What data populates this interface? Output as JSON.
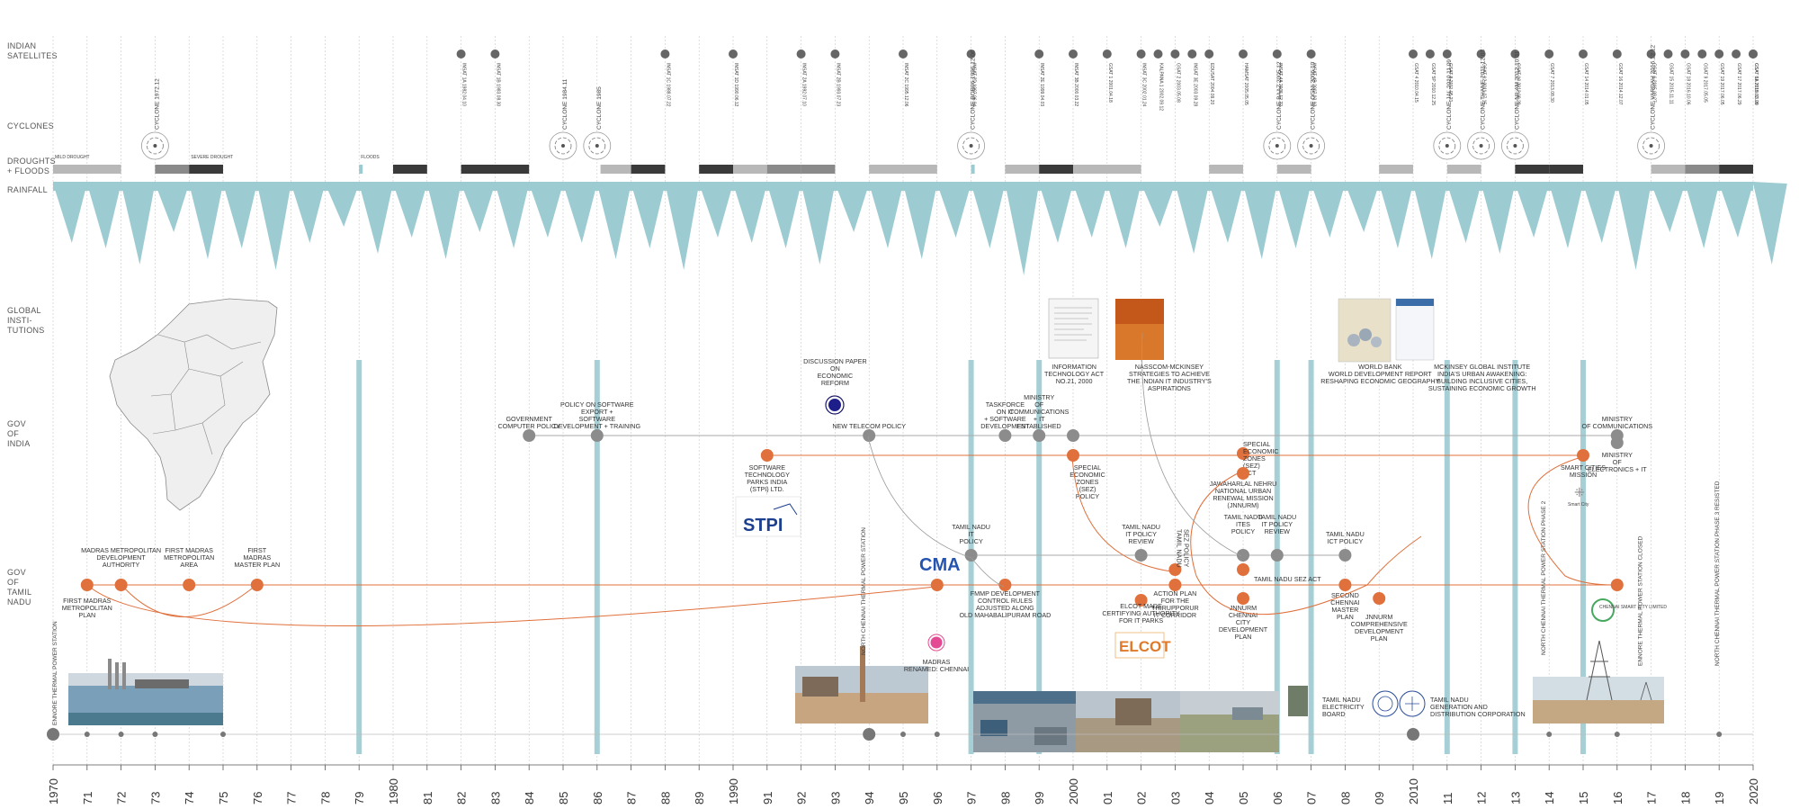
{
  "row_labels": {
    "satellites": [
      "INDIAN",
      "SATELLITES"
    ],
    "cyclones": [
      "CYCLONES"
    ],
    "droughts": [
      "DROUGHTS",
      "+ FLOODS"
    ],
    "rainfall": [
      "RAINFALL"
    ],
    "global": [
      "GLOBAL",
      "INSTI-",
      "TUTIONS"
    ],
    "goi": [
      "GOV",
      "OF",
      "INDIA"
    ],
    "gotn": [
      "GOV",
      "OF",
      "TAMIL",
      "NADU"
    ]
  },
  "years": [
    "1970",
    "71",
    "72",
    "73",
    "74",
    "75",
    "76",
    "77",
    "78",
    "79",
    "1980",
    "81",
    "82",
    "83",
    "84",
    "85",
    "86",
    "87",
    "88",
    "89",
    "1990",
    "91",
    "92",
    "93",
    "94",
    "95",
    "96",
    "97",
    "98",
    "99",
    "2000",
    "01",
    "02",
    "03",
    "04",
    "05",
    "06",
    "07",
    "08",
    "09",
    "2010",
    "11",
    "12",
    "13",
    "14",
    "15",
    "16",
    "17",
    "18",
    "19",
    "2020"
  ],
  "year_range": [
    1970,
    2020
  ],
  "colors": {
    "accent": "#e0703c",
    "teal": "#9ccbd2",
    "grey": "#888888",
    "dark": "#3a3a3a",
    "light": "#bdbdbd"
  },
  "satellites": [
    {
      "year": 82.0,
      "label": "INSAT 1A 1982.04.10"
    },
    {
      "year": 83.0,
      "label": "INSAT 1B 1983.08.30"
    },
    {
      "year": 88.0,
      "label": "INSAT 1C 1988.07.22"
    },
    {
      "year": 90.0,
      "label": "INSAT 1D 1990.06.12"
    },
    {
      "year": 92.0,
      "label": "INSAT 2A 1992.07.10"
    },
    {
      "year": 93.0,
      "label": "INSAT 2B 1993.07.23"
    },
    {
      "year": 95.0,
      "label": "INSAT 2C 1995.12.06"
    },
    {
      "year": 97.0,
      "label": "INSAT 2D 1997.06.04"
    },
    {
      "year": 99.0,
      "label": "INSAT 2E 1999.04.03"
    },
    {
      "year": 100.0,
      "label": "INSAT 3B 2000.03.22"
    },
    {
      "year": 101.0,
      "label": "GSAT 1 2001.04.18"
    },
    {
      "year": 102.0,
      "label": "INSAT 3C 2002.01.24"
    },
    {
      "year": 102.5,
      "label": "KALPANA 1 2002.09.12"
    },
    {
      "year": 103.0,
      "label": "GSAT 2 2003.05.08"
    },
    {
      "year": 103.5,
      "label": "INSAT 3E 2003.09.28"
    },
    {
      "year": 104.0,
      "label": "EDUSAT 2004.09.20"
    },
    {
      "year": 105.0,
      "label": "HAMSAT 2005.05.05"
    },
    {
      "year": 106.0,
      "label": "INSAT 4A 2005.12.22"
    },
    {
      "year": 107.0,
      "label": "INSAT 4B 2007.03.12"
    },
    {
      "year": 110.0,
      "label": "GSAT 4 2010.04.15"
    },
    {
      "year": 110.5,
      "label": "GSAT 5P 2010.12.25"
    },
    {
      "year": 111.0,
      "label": "GSAT 8 2011.05.21"
    },
    {
      "year": 112.0,
      "label": "GSAT 12 2011.07.15"
    },
    {
      "year": 113.0,
      "label": "GSAT 10 2012.09.29"
    },
    {
      "year": 114.0,
      "label": "GSAT 7 2013.08.30"
    },
    {
      "year": 115.0,
      "label": "GSAT 14 2014.01.05"
    },
    {
      "year": 116.0,
      "label": "GSAT 16 2014.12.07"
    },
    {
      "year": 117.0,
      "label": "GSAT 6 2015.08.27"
    },
    {
      "year": 117.5,
      "label": "GSAT 15 2015.11.11"
    },
    {
      "year": 118.0,
      "label": "GSAT 18 2016.10.06"
    },
    {
      "year": 118.5,
      "label": "GSAT 9 2017.05.05"
    },
    {
      "year": 119.0,
      "label": "GSAT 19 2017.06.05"
    },
    {
      "year": 119.5,
      "label": "GSAT 17 2017.06.29"
    },
    {
      "year": 120.0,
      "label": "GSAT 6A 2018.03.29"
    },
    {
      "year": 120.0,
      "label": "GSAT 31 2019.02.06"
    }
  ],
  "cyclones": [
    {
      "year": 73.0,
      "label": "CYCLONE 1972.12"
    },
    {
      "year": 85.0,
      "label": "CYCLONE 1984.11"
    },
    {
      "year": 86.0,
      "label": "CYCLONE 1985"
    },
    {
      "year": 97.0,
      "label": "CYCLONE BOB06 1996.12.06"
    },
    {
      "year": 106.0,
      "label": "CYCLONE BAAZ 2005.12"
    },
    {
      "year": 107.0,
      "label": "CYCLONE OGNI 2006.10"
    },
    {
      "year": 111.0,
      "label": "CYCLONE JAL 2010.11.09"
    },
    {
      "year": 112.0,
      "label": "CYCLONE THANE 2011.12.03"
    },
    {
      "year": 113.0,
      "label": "CYCLONE NILAM 2012.10.31"
    },
    {
      "year": 117.0,
      "label": "CYCLONE VARDAH 2016.12.12"
    }
  ],
  "droughts": [
    {
      "start": 70.0,
      "end": 72.0,
      "level": "light"
    },
    {
      "start": 73.0,
      "end": 74.0,
      "level": "mid"
    },
    {
      "start": 74.0,
      "end": 75.0,
      "level": "dark"
    },
    {
      "start": 79.0,
      "end": 79.1,
      "level": "teal"
    },
    {
      "start": 80.0,
      "end": 81.0,
      "level": "dark"
    },
    {
      "start": 82.0,
      "end": 84.0,
      "level": "dark"
    },
    {
      "start": 86.1,
      "end": 87.0,
      "level": "light"
    },
    {
      "start": 87.0,
      "end": 88.0,
      "level": "dark"
    },
    {
      "start": 89.0,
      "end": 90.0,
      "level": "dark"
    },
    {
      "start": 90.0,
      "end": 91.0,
      "level": "light"
    },
    {
      "start": 91.0,
      "end": 92.0,
      "level": "mid"
    },
    {
      "start": 92.0,
      "end": 93.0,
      "level": "mid"
    },
    {
      "start": 94.0,
      "end": 96.0,
      "level": "light"
    },
    {
      "start": 97.0,
      "end": 97.1,
      "level": "teal"
    },
    {
      "start": 98.0,
      "end": 99.0,
      "level": "light"
    },
    {
      "start": 99.0,
      "end": 100.0,
      "level": "dark"
    },
    {
      "start": 100.0,
      "end": 102.0,
      "level": "light"
    },
    {
      "start": 104.0,
      "end": 105.0,
      "level": "light"
    },
    {
      "start": 106.0,
      "end": 107.0,
      "level": "light"
    },
    {
      "start": 109.0,
      "end": 110.0,
      "level": "light"
    },
    {
      "start": 111.0,
      "end": 112.0,
      "level": "light"
    },
    {
      "start": 113.0,
      "end": 114.0,
      "level": "dark"
    },
    {
      "start": 114.0,
      "end": 115.0,
      "level": "dark"
    },
    {
      "start": 117.0,
      "end": 118.0,
      "level": "light"
    },
    {
      "start": 118.0,
      "end": 119.0,
      "level": "mid"
    },
    {
      "start": 119.0,
      "end": 120.0,
      "level": "dark"
    }
  ],
  "drought_labels": [
    {
      "year": 70.0,
      "text": "MILD DROUGHT"
    },
    {
      "year": 74.0,
      "text": "SEVERE DROUGHT"
    },
    {
      "year": 79.0,
      "text": "FLOODS"
    }
  ],
  "rainfall": [
    0.55,
    0.6,
    0.75,
    0.45,
    0.7,
    0.6,
    0.8,
    0.55,
    0.4,
    0.65,
    0.5,
    0.7,
    0.45,
    0.6,
    0.5,
    0.55,
    0.7,
    0.6,
    0.8,
    0.5,
    0.55,
    0.6,
    0.75,
    0.45,
    0.6,
    0.7,
    0.5,
    0.6,
    0.85,
    0.55,
    0.5,
    0.6,
    0.4,
    0.65,
    0.55,
    0.7,
    0.6,
    0.5,
    0.45,
    0.6,
    0.7,
    0.55,
    0.65,
    0.5,
    0.6,
    0.55,
    0.8,
    0.45,
    0.6,
    0.5,
    0.75
  ],
  "highlight_years": [
    79,
    86,
    97,
    99,
    106,
    107,
    111,
    113,
    115
  ],
  "global_items": [
    {
      "year": 99.5,
      "lines": [
        "INFORMATION",
        "TECHNOLOGY ACT",
        "NO.21, 2000"
      ]
    },
    {
      "year": 102.3,
      "lines": [
        "NASSCOM-MCKINSEY",
        "STRATEGIES TO ACHIEVE",
        "THE INDIAN IT INDUSTRY'S",
        "ASPIRATIONS"
      ]
    },
    {
      "year": 108.5,
      "lines": [
        "WORLD BANK",
        "WORLD DEVELOPMENT REPORT",
        "RESHAPING ECONOMIC GEOGRAPHY"
      ]
    },
    {
      "year": 111.5,
      "lines": [
        "MCKINSEY GLOBAL INSTITUTE",
        "INDIA'S URBAN AWAKENING:",
        "BUILDING INCLUSIVE CITIES,",
        "SUSTAINING ECONOMIC GROWTH"
      ]
    }
  ],
  "goi_events": [
    {
      "year": 84.0,
      "lines": [
        "GOVERNMENT",
        "COMPUTER POLICY"
      ],
      "color": "grey"
    },
    {
      "year": 86.0,
      "lines": [
        "POLICY ON SOFTWARE",
        "EXPORT +",
        "SOFTWARE",
        "DEVELOPMENT + TRAINING"
      ],
      "color": "grey"
    },
    {
      "year": 94.0,
      "lines": [
        "NEW TELECOM POLICY"
      ],
      "color": "grey"
    },
    {
      "year": 93.0,
      "lines": [
        "DISCUSSION PAPER",
        "ON",
        "ECONOMIC",
        "REFORM"
      ],
      "color": "none"
    },
    {
      "year": 98.0,
      "lines": [
        "TASKFORCE",
        "ON IT",
        "+ SOFTWARE",
        "DEVELOPMENT"
      ],
      "color": "grey"
    },
    {
      "year": 99.0,
      "lines": [
        "MINISTRY",
        "OF",
        "COMMUNICATIONS",
        "+ IT",
        "ESTABLISHED"
      ],
      "color": "grey"
    },
    {
      "year": 100.0,
      "lines": [],
      "color": "grey"
    },
    {
      "year": 91.0,
      "lines": [
        "SOFTWARE",
        "TECHNOLOGY",
        "PARKS INDIA",
        "(STPI) LTD."
      ],
      "color": "orange"
    },
    {
      "year": 100.0,
      "lines": [
        "SPECIAL",
        "ECONOMIC",
        "ZONES",
        "(SEZ)",
        "POLICY"
      ],
      "color": "orange",
      "lower": true
    },
    {
      "year": 105.0,
      "lines": [
        "SPECIAL",
        "ECONOMIC",
        "ZONES",
        "(SEZ)",
        "ACT"
      ],
      "color": "orange"
    },
    {
      "year": 115.0,
      "lines": [
        "SMART CITIES",
        "MISSION"
      ],
      "color": "orange"
    },
    {
      "year": 116.0,
      "lines": [
        "MINISTRY",
        "OF COMMUNICATIONS"
      ],
      "color": "grey"
    },
    {
      "year": 116.0,
      "lines": [
        "MINISTRY",
        "OF",
        "ELECTRONICS + IT"
      ],
      "color": "grey",
      "lower": true
    }
  ],
  "gotn_events": [
    {
      "year": 71.0,
      "lines": [
        "FIRST MADRAS",
        "METROPOLITAN",
        "PLAN"
      ],
      "below": true
    },
    {
      "year": 72.0,
      "lines": [
        "MADRAS METROPOLITAN",
        "DEVELOPMENT",
        "AUTHORITY"
      ]
    },
    {
      "year": 74.0,
      "lines": [
        "FIRST MADRAS",
        "METROPOLITAN",
        "AREA"
      ]
    },
    {
      "year": 76.0,
      "lines": [
        "FIRST",
        "MADRAS",
        "MASTER PLAN"
      ]
    },
    {
      "year": 96.0,
      "lines": []
    },
    {
      "year": 97.0,
      "lines": [
        "TAMIL NADU",
        "IT",
        "POLICY"
      ],
      "grey": true
    },
    {
      "year": 98.0,
      "lines": [
        "FMMP DEVELOPMENT",
        "CONTROL RULES",
        "ADJUSTED ALONG",
        "OLD MAHABALIPURAM ROAD"
      ],
      "below": true
    },
    {
      "year": 102.0,
      "lines": [
        "TAMIL NADU",
        "IT POLICY",
        "REVIEW"
      ],
      "grey": true
    },
    {
      "year": 102.0,
      "lines": [
        "ELCOT MADE",
        "CERTIFYING AUTHORITY",
        "FOR IT PARKS"
      ],
      "below": true
    },
    {
      "year": 103.0,
      "lines": [
        "TAMIL NADU",
        "SEZ POLICY"
      ],
      "vertical": true
    },
    {
      "year": 103.0,
      "lines": [
        "ACTION PLAN",
        "FOR THE",
        "THIRUPPORUR",
        "IT CORRIDOR"
      ],
      "below": true
    },
    {
      "year": 105.0,
      "lines": [
        "JAWAHARLAL NEHRU",
        "NATIONAL URBAN",
        "RENEWAL MISSION",
        "(JNNURM)"
      ]
    },
    {
      "year": 105.0,
      "lines": [
        "TAMIL NADU",
        "ITES",
        "POLICY"
      ],
      "grey": true
    },
    {
      "year": 106.0,
      "lines": [
        "TAMIL NADU",
        "IT POLICY",
        "REVIEW"
      ],
      "grey": true
    },
    {
      "year": 105.0,
      "lines": [
        "TAMIL NADU SEZ ACT"
      ]
    },
    {
      "year": 105.0,
      "lines": [
        "JNNURM",
        "CHENNAI",
        "CITY",
        "DEVELOPMENT",
        "PLAN"
      ],
      "below": true
    },
    {
      "year": 108.0,
      "lines": [
        "TAMIL NADU",
        "ICT POLICY"
      ],
      "grey": true
    },
    {
      "year": 108.0,
      "lines": [
        "SECOND",
        "CHENNAI",
        "MASTER",
        "PLAN"
      ],
      "below": true
    },
    {
      "year": 109.0,
      "lines": [
        "JNNURM",
        "COMPREHENSIVE",
        "DEVELOPMENT",
        "PLAN"
      ],
      "below": true
    },
    {
      "year": 116.0,
      "lines": []
    }
  ],
  "misc_labels": {
    "madras_renamed": [
      "MADRAS",
      "RENAMED: CHENNAI"
    ],
    "tneb": [
      "TAMIL NADU",
      "ELECTRICITY",
      "BOARD"
    ],
    "tangedco": [
      "TAMIL NADU",
      "GENERATION AND",
      "DISTRIBUTION CORPORATION"
    ],
    "ennore": "ENNORE THERMAL POWER STATION",
    "north_chennai": "NORTH CHENNAI THERMAL POWER STATION",
    "nc_phase2": "NORTH CHENNAI THERMAL POWER STATION PHASE 2",
    "ennore_closed": "ENNORE THERMAL POWER STATION CLOSED",
    "nc_phase3": "NORTH CHENNAI THERMAL POWER STATION PHASE 3 RESISTED",
    "stpi_logo": "STPI",
    "cma_logo": "CMA",
    "elcot_logo": "ELCOT",
    "smart_city_logo": "Smart City",
    "chennai_smart_city": "CHENNAI SMART CITY LIMITED"
  }
}
